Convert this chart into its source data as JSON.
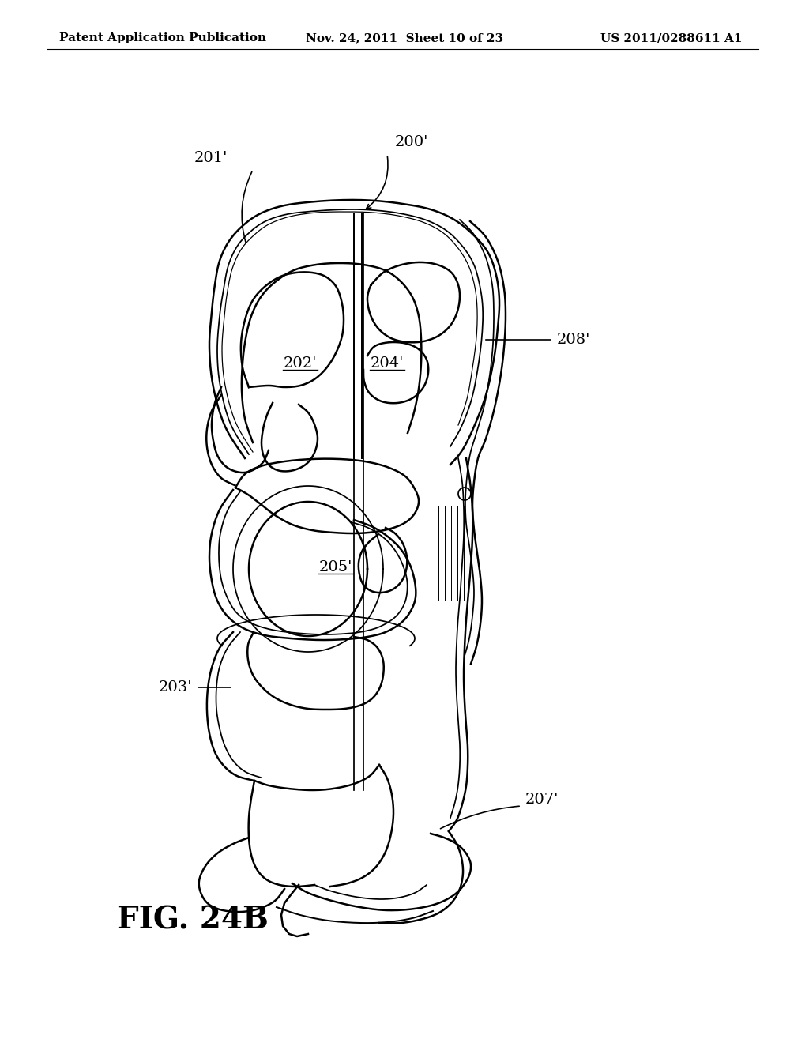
{
  "bg_color": "#ffffff",
  "header_left": "Patent Application Publication",
  "header_mid": "Nov. 24, 2011  Sheet 10 of 23",
  "header_right": "US 2011/0288611 A1",
  "fig_label": "FIG. 24B",
  "title_fontsize": 28,
  "header_fontsize": 11,
  "label_fontsize": 14
}
